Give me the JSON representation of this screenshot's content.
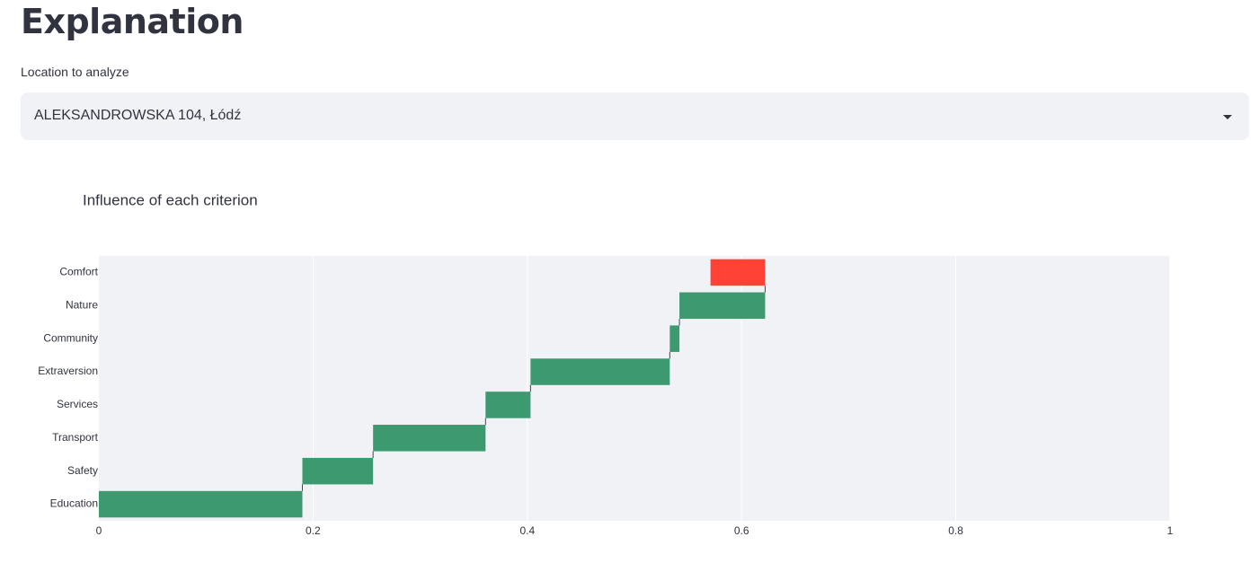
{
  "header": {
    "title": "Explanation"
  },
  "select": {
    "label": "Location to analyze",
    "value": "ALEKSANDROWSKA 104, Łódź"
  },
  "chart_data": {
    "type": "waterfall",
    "orientation": "horizontal",
    "title": "Influence of each criterion",
    "categories": [
      "Education",
      "Safety",
      "Transport",
      "Services",
      "Extraversion",
      "Community",
      "Nature",
      "Comfort"
    ],
    "values": [
      0.19,
      0.066,
      0.105,
      0.042,
      0.13,
      0.009,
      0.08,
      -0.051
    ],
    "increasing_color": "#3d9970",
    "decreasing_color": "#ff4136",
    "xlim": [
      0,
      1
    ],
    "xticks": [
      0,
      0.2,
      0.4,
      0.6,
      0.8,
      1
    ],
    "grid": true
  }
}
